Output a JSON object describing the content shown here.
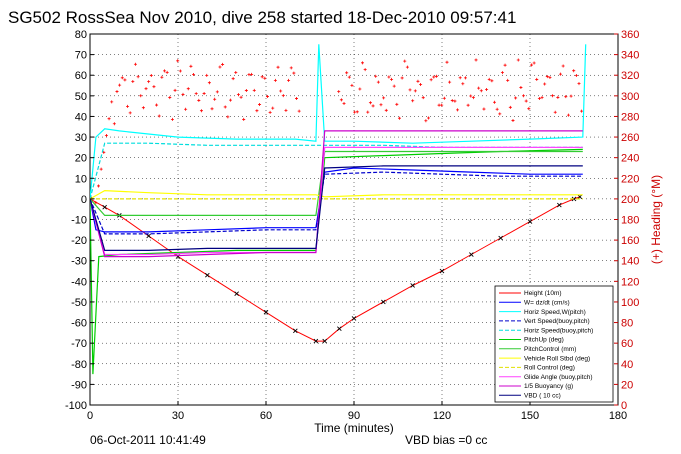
{
  "chart_data": {
    "type": "line",
    "title": "SG502 RossSea Nov 2010, dive 258 started 18-Dec-2010 09:57:41",
    "xlabel": "Time (minutes)",
    "ylabel_right": "(+) Heading (°M)",
    "xlim": [
      0,
      180
    ],
    "ylim_left": [
      -100,
      80
    ],
    "ylim_right": [
      0,
      360
    ],
    "x_ticks": [
      0,
      30,
      60,
      90,
      120,
      150,
      180
    ],
    "y_ticks_left": [
      -100,
      -90,
      -80,
      -70,
      -60,
      -50,
      -40,
      -30,
      -20,
      -10,
      0,
      10,
      20,
      30,
      40,
      50,
      60,
      70,
      80
    ],
    "y_ticks_right": [
      0,
      20,
      40,
      60,
      80,
      100,
      120,
      140,
      160,
      180,
      200,
      220,
      240,
      260,
      280,
      300,
      320,
      340,
      360
    ],
    "grid": true,
    "legend_position": "bottom-right",
    "colors": {
      "height": "#ff0000",
      "w": "#0000ff",
      "horz_speed": "#00ffff",
      "vert_speed_buoy": "#0000cc",
      "horz_speed_buoy": "#00dddd",
      "pitch_up": "#00cc00",
      "pitch_control": "#33cc33",
      "vehicle_roll": "#ffff00",
      "roll_control": "#e0e000",
      "glide_angle": "#ff44ff",
      "buoyancy": "#cc00cc",
      "vbd": "#000080",
      "heading": "#ff0000"
    },
    "series": [
      {
        "name": "Height (10m)",
        "x": [
          0,
          5,
          10,
          20,
          30,
          40,
          50,
          60,
          70,
          77,
          80,
          85,
          90,
          100,
          110,
          120,
          130,
          140,
          150,
          160,
          165,
          167
        ],
        "values": [
          0,
          -4,
          -8,
          -18,
          -28,
          -37,
          -46,
          -55,
          -64,
          -69,
          -69,
          -63,
          -58,
          -50,
          -42,
          -35,
          -27,
          -19,
          -11,
          -3,
          0,
          1
        ]
      },
      {
        "name": "W= dz/dt (cm/s)",
        "x": [
          0,
          2,
          5,
          20,
          40,
          60,
          77,
          80,
          90,
          110,
          130,
          150,
          168
        ],
        "values": [
          0,
          -15,
          -16,
          -16,
          -15,
          -14,
          -14,
          13,
          15,
          14,
          13,
          12,
          12
        ]
      },
      {
        "name": "Horiz Speed,W(pitch)",
        "x": [
          0,
          2,
          5,
          10,
          30,
          50,
          70,
          77,
          78,
          80,
          90,
          110,
          130,
          150,
          168,
          169
        ],
        "values": [
          0,
          30,
          34,
          33,
          30,
          29,
          29,
          28,
          75,
          28,
          28,
          27,
          28,
          29,
          30,
          75
        ]
      },
      {
        "name": "Vert Speed(buoy,pitch)",
        "x": [
          0,
          5,
          20,
          40,
          60,
          77,
          80,
          100,
          120,
          140,
          168
        ],
        "values": [
          0,
          -17,
          -17,
          -16,
          -15,
          -15,
          12,
          13,
          12,
          11,
          11
        ]
      },
      {
        "name": "Horiz Speed(buoy,pitch)",
        "x": [
          0,
          5,
          20,
          40,
          60,
          77,
          80,
          100,
          120,
          140,
          168
        ],
        "values": [
          0,
          27,
          27,
          26,
          26,
          26,
          26,
          26,
          25,
          25,
          25
        ]
      },
      {
        "name": "PitchUp (deg)",
        "x": [
          0,
          1,
          3,
          10,
          30,
          50,
          77,
          80,
          100,
          120,
          140,
          168
        ],
        "values": [
          0,
          -85,
          -28,
          -27,
          -26,
          -25,
          -25,
          20,
          21,
          22,
          23,
          24
        ]
      },
      {
        "name": "PitchControl (mm)",
        "x": [
          0,
          5,
          20,
          40,
          60,
          77,
          80,
          100,
          120,
          140,
          168
        ],
        "values": [
          0,
          -8,
          -8,
          -8,
          -8,
          -8,
          23,
          23,
          23,
          23,
          23
        ]
      },
      {
        "name": "Vehicle Roll Stbd (deg)",
        "x": [
          0,
          5,
          20,
          40,
          60,
          77,
          80,
          100,
          120,
          140,
          168
        ],
        "values": [
          0,
          4,
          3,
          2,
          2,
          2,
          1,
          2,
          2,
          2,
          2
        ]
      },
      {
        "name": "Roll Control (deg)",
        "x": [
          0,
          5,
          20,
          40,
          60,
          77,
          80,
          100,
          120,
          140,
          168
        ],
        "values": [
          0,
          0,
          0,
          0,
          0,
          0,
          0,
          0,
          0,
          0,
          0
        ]
      },
      {
        "name": "Glide Angle (buoy,pitch)",
        "x": [
          0,
          5,
          20,
          40,
          60,
          77,
          80,
          100,
          120,
          140,
          168
        ],
        "values": [
          0,
          -27,
          -27,
          -26,
          -26,
          -26,
          25,
          25,
          25,
          25,
          25
        ]
      },
      {
        "name": "1/5 Buoyancy (g)",
        "x": [
          0,
          5,
          20,
          40,
          60,
          77,
          80,
          100,
          120,
          140,
          168
        ],
        "values": [
          0,
          -28,
          -28,
          -27,
          -26,
          -26,
          33,
          33,
          33,
          33,
          33
        ]
      },
      {
        "name": "VBD ( 10 cc)",
        "x": [
          0,
          5,
          20,
          40,
          60,
          77,
          80,
          100,
          120,
          140,
          168
        ],
        "values": [
          0,
          -25,
          -25,
          -24,
          -24,
          -24,
          15,
          16,
          16,
          16,
          16
        ]
      }
    ],
    "heading": {
      "name": "Heading",
      "mean_deg": 305,
      "spread_deg": 25,
      "start_deg": 160
    },
    "footer_left": "06-Oct-2011 10:41:49",
    "footer_right": "VBD bias =0 cc"
  }
}
